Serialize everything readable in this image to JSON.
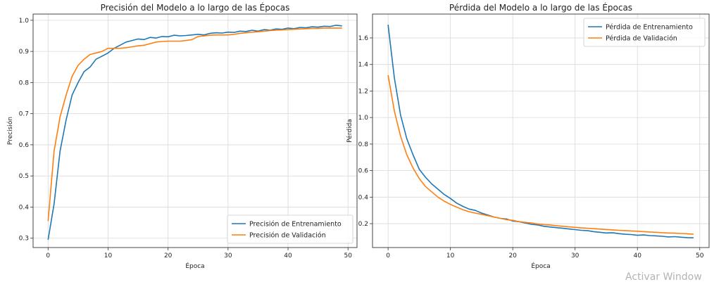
{
  "chart_data": [
    {
      "type": "line",
      "title": "Precisión del Modelo a lo largo de las Épocas",
      "xlabel": "Época",
      "ylabel": "Precisión",
      "xlim": [
        -2.5,
        51.5
      ],
      "ylim": [
        0.27,
        1.02
      ],
      "grid": true,
      "legend_position": "lower-right",
      "x_ticks": [
        0,
        10,
        20,
        30,
        40,
        50
      ],
      "y_ticks": [
        0.3,
        0.4,
        0.5,
        0.6,
        0.7,
        0.8,
        0.9,
        1.0
      ],
      "x_tick_labels": [
        "0",
        "10",
        "20",
        "30",
        "40",
        "50"
      ],
      "y_tick_labels": [
        "0.3",
        "0.4",
        "0.5",
        "0.6",
        "0.7",
        "0.8",
        "0.9",
        "1.0"
      ],
      "x": [
        0,
        1,
        2,
        3,
        4,
        5,
        6,
        7,
        8,
        9,
        10,
        11,
        12,
        13,
        14,
        15,
        16,
        17,
        18,
        19,
        20,
        21,
        22,
        23,
        24,
        25,
        26,
        27,
        28,
        29,
        30,
        31,
        32,
        33,
        34,
        35,
        36,
        37,
        38,
        39,
        40,
        41,
        42,
        43,
        44,
        45,
        46,
        47,
        48,
        49
      ],
      "series": [
        {
          "name": "Precisión de Entrenamiento",
          "color": "#1f77b4",
          "values": [
            0.295,
            0.41,
            0.58,
            0.68,
            0.76,
            0.8,
            0.835,
            0.85,
            0.875,
            0.885,
            0.895,
            0.91,
            0.92,
            0.93,
            0.935,
            0.94,
            0.938,
            0.945,
            0.943,
            0.948,
            0.947,
            0.952,
            0.95,
            0.951,
            0.953,
            0.955,
            0.953,
            0.958,
            0.96,
            0.959,
            0.962,
            0.961,
            0.965,
            0.964,
            0.968,
            0.965,
            0.97,
            0.968,
            0.972,
            0.971,
            0.975,
            0.973,
            0.977,
            0.976,
            0.979,
            0.978,
            0.981,
            0.98,
            0.984,
            0.982
          ]
        },
        {
          "name": "Precisión de Validación",
          "color": "#ff7f0e",
          "values": [
            0.355,
            0.58,
            0.69,
            0.76,
            0.82,
            0.855,
            0.875,
            0.89,
            0.895,
            0.9,
            0.91,
            0.91,
            0.91,
            0.912,
            0.915,
            0.918,
            0.92,
            0.925,
            0.93,
            0.932,
            0.933,
            0.933,
            0.933,
            0.935,
            0.938,
            0.948,
            0.95,
            0.952,
            0.953,
            0.953,
            0.953,
            0.955,
            0.958,
            0.96,
            0.962,
            0.963,
            0.965,
            0.967,
            0.968,
            0.969,
            0.97,
            0.971,
            0.972,
            0.973,
            0.974,
            0.974,
            0.975,
            0.975,
            0.975,
            0.975
          ]
        }
      ]
    },
    {
      "type": "line",
      "title": "Pérdida del Modelo a lo largo de las Épocas",
      "xlabel": "Época",
      "ylabel": "Pérdida",
      "xlim": [
        -2.5,
        51.5
      ],
      "ylim": [
        0.02,
        1.78
      ],
      "grid": true,
      "legend_position": "top-right",
      "x_ticks": [
        0,
        10,
        20,
        30,
        40,
        50
      ],
      "y_ticks": [
        0.2,
        0.4,
        0.6,
        0.8,
        1.0,
        1.2,
        1.4,
        1.6
      ],
      "x_tick_labels": [
        "0",
        "10",
        "20",
        "30",
        "40",
        "50"
      ],
      "y_tick_labels": [
        "0.2",
        "0.4",
        "0.6",
        "0.8",
        "1.0",
        "1.2",
        "1.4",
        "1.6"
      ],
      "x": [
        0,
        1,
        2,
        3,
        4,
        5,
        6,
        7,
        8,
        9,
        10,
        11,
        12,
        13,
        14,
        15,
        16,
        17,
        18,
        19,
        20,
        21,
        22,
        23,
        24,
        25,
        26,
        27,
        28,
        29,
        30,
        31,
        32,
        33,
        34,
        35,
        36,
        37,
        38,
        39,
        40,
        41,
        42,
        43,
        44,
        45,
        46,
        47,
        48,
        49
      ],
      "series": [
        {
          "name": "Pérdida de Entrenamiento",
          "color": "#1f77b4",
          "values": [
            1.7,
            1.3,
            1.02,
            0.84,
            0.72,
            0.61,
            0.55,
            0.5,
            0.46,
            0.42,
            0.39,
            0.355,
            0.33,
            0.31,
            0.3,
            0.28,
            0.265,
            0.25,
            0.24,
            0.235,
            0.22,
            0.215,
            0.205,
            0.195,
            0.19,
            0.18,
            0.175,
            0.17,
            0.165,
            0.16,
            0.155,
            0.15,
            0.148,
            0.14,
            0.135,
            0.13,
            0.132,
            0.125,
            0.12,
            0.118,
            0.112,
            0.115,
            0.11,
            0.108,
            0.105,
            0.1,
            0.102,
            0.098,
            0.095,
            0.093
          ]
        },
        {
          "name": "Pérdida de Validación",
          "color": "#ff7f0e",
          "values": [
            1.32,
            1.05,
            0.86,
            0.72,
            0.62,
            0.54,
            0.48,
            0.44,
            0.4,
            0.37,
            0.345,
            0.325,
            0.305,
            0.29,
            0.28,
            0.27,
            0.26,
            0.25,
            0.24,
            0.23,
            0.225,
            0.215,
            0.21,
            0.205,
            0.198,
            0.193,
            0.19,
            0.185,
            0.18,
            0.176,
            0.172,
            0.168,
            0.165,
            0.162,
            0.159,
            0.156,
            0.153,
            0.15,
            0.148,
            0.145,
            0.143,
            0.14,
            0.137,
            0.135,
            0.132,
            0.13,
            0.128,
            0.126,
            0.124,
            0.12
          ]
        }
      ]
    }
  ],
  "watermark": "Activar Window"
}
